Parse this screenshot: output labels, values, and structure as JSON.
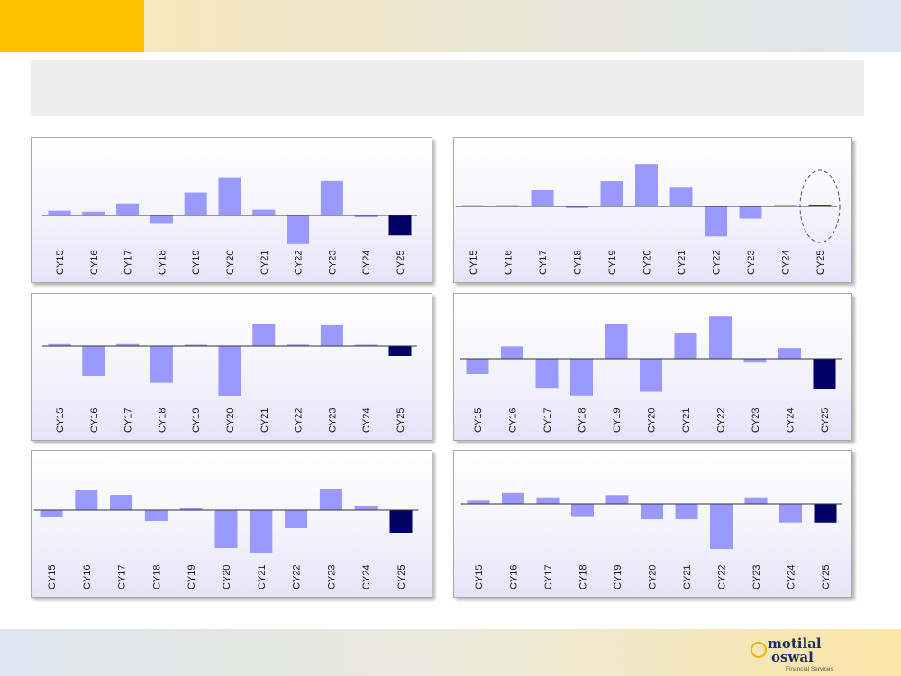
{
  "branding": {
    "logo_line1": "motilal",
    "logo_line2": "oswal",
    "logo_line3": "Financial Services"
  },
  "colors": {
    "bar": "#9999ff",
    "highlight": "#000066",
    "axis": "#333333",
    "ellipse": "#44546a"
  },
  "chart_data": [
    {
      "type": "bar",
      "categories": [
        "CY15",
        "CY16",
        "CY17",
        "CY18",
        "CY19",
        "CY20",
        "CY21",
        "CY22",
        "CY23",
        "CY24",
        "CY25"
      ],
      "values": [
        1.0,
        0.8,
        2.5,
        -1.6,
        4.8,
        8.0,
        1.2,
        -6.0,
        7.2,
        -0.4,
        -4.2
      ],
      "ylim": [
        -8,
        12
      ],
      "highlight_index": 10
    },
    {
      "type": "bar",
      "categories": [
        "CY15",
        "CY16",
        "CY17",
        "CY18",
        "CY19",
        "CY20",
        "CY21",
        "CY22",
        "CY23",
        "CY24",
        "CY25"
      ],
      "values": [
        0.1,
        0.0,
        2.0,
        -0.2,
        3.1,
        5.2,
        2.3,
        -3.7,
        -1.5,
        0.2,
        0.2
      ],
      "ylim": [
        -5,
        7
      ],
      "highlight_index": 10,
      "circled_index": 10
    },
    {
      "type": "bar",
      "categories": [
        "CY15",
        "CY16",
        "CY17",
        "CY18",
        "CY19",
        "CY20",
        "CY21",
        "CY22",
        "CY23",
        "CY24",
        "CY25"
      ],
      "values": [
        0.4,
        -6.0,
        0.4,
        -7.4,
        0.0,
        -10.0,
        4.4,
        0.3,
        4.2,
        0.2,
        -2.0
      ],
      "ylim": [
        -12,
        8
      ],
      "highlight_index": 10
    },
    {
      "type": "bar",
      "categories": [
        "CY15",
        "CY16",
        "CY17",
        "CY18",
        "CY19",
        "CY20",
        "CY21",
        "CY22",
        "CY23",
        "CY24",
        "CY25"
      ],
      "values": [
        -2.0,
        1.6,
        -3.9,
        -4.8,
        4.5,
        -4.3,
        3.4,
        5.5,
        -0.5,
        1.4,
        -4.0
      ],
      "ylim": [
        -6,
        7
      ],
      "highlight_index": 10
    },
    {
      "type": "bar",
      "categories": [
        "CY15",
        "CY16",
        "CY17",
        "CY18",
        "CY19",
        "CY20",
        "CY21",
        "CY22",
        "CY23",
        "CY24",
        "CY25"
      ],
      "values": [
        -0.8,
        2.2,
        1.7,
        -1.2,
        0.2,
        -4.2,
        -4.8,
        -2.0,
        2.3,
        0.5,
        -2.5
      ],
      "ylim": [
        -6,
        4
      ],
      "highlight_index": 10
    },
    {
      "type": "bar",
      "categories": [
        "CY15",
        "CY16",
        "CY17",
        "CY18",
        "CY19",
        "CY20",
        "CY21",
        "CY22",
        "CY23",
        "CY24",
        "CY25"
      ],
      "values": [
        0.3,
        1.0,
        0.6,
        -1.2,
        0.8,
        -1.4,
        -1.4,
        -4.1,
        0.6,
        -1.7,
        -1.7
      ],
      "ylim": [
        -5,
        2.5
      ],
      "highlight_index": 10
    }
  ]
}
